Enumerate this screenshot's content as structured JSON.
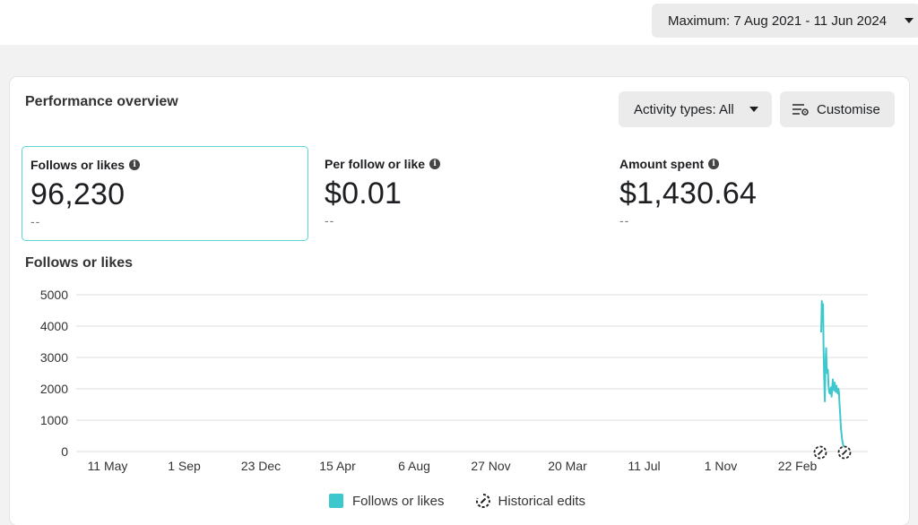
{
  "header": {
    "date_range": "Maximum: 7 Aug 2021 - 11 Jun 2024"
  },
  "overview": {
    "title": "Performance overview",
    "activity_label": "Activity types: All",
    "customise_label": "Customise"
  },
  "metrics": [
    {
      "label": "Follows or likes",
      "value": "96,230",
      "delta": "--"
    },
    {
      "label": "Per follow or like",
      "value": "$0.01",
      "delta": "--"
    },
    {
      "label": "Amount spent",
      "value": "$1,430.64",
      "delta": "--"
    }
  ],
  "colors": {
    "series": "#3cc8cc",
    "grid": "#dddddd",
    "selected_border": "#5ad4d4"
  },
  "chart_data": {
    "type": "line",
    "title": "Follows or likes",
    "ylabel": "",
    "xlabel": "",
    "ylim": [
      0,
      5000
    ],
    "yticks": [
      0,
      1000,
      2000,
      3000,
      4000,
      5000
    ],
    "x_tick_labels": [
      "11 May",
      "1 Sep",
      "23 Dec",
      "15 Apr",
      "6 Aug",
      "27 Nov",
      "20 Mar",
      "11 Jul",
      "1 Nov",
      "22 Feb"
    ],
    "series": [
      {
        "name": "Follows or likes",
        "x": [
          0,
          2,
          4,
          6,
          8,
          10,
          12,
          14,
          16,
          18,
          20,
          22,
          24,
          26,
          28,
          30,
          32,
          34,
          36,
          38,
          40,
          42,
          44,
          46,
          48,
          50,
          52,
          54,
          56,
          58,
          60,
          62,
          64,
          66,
          68,
          70,
          72,
          74,
          76
        ],
        "values": [
          3800,
          4800,
          4500,
          4700,
          3200,
          2300,
          1600,
          2800,
          3300,
          2700,
          2500,
          2600,
          2100,
          1900,
          1850,
          1900,
          2050,
          1750,
          2000,
          2300,
          2050,
          1950,
          2200,
          2000,
          1900,
          2100,
          1950,
          1850,
          2000,
          1900,
          1500,
          1200,
          800,
          600,
          400,
          300,
          200,
          150,
          0
        ]
      }
    ],
    "legend": [
      "Follows or likes",
      "Historical edits"
    ],
    "legend_position": "bottom"
  }
}
